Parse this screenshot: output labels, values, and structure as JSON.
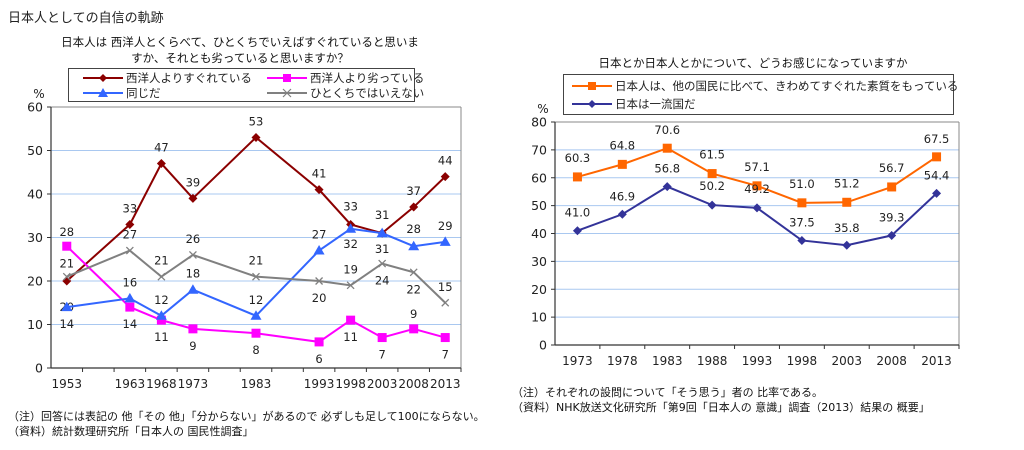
{
  "page": {
    "title": "日本人としての自信の軌跡"
  },
  "chart_data": [
    {
      "type": "line",
      "title": "日本人は 西洋人とくらべて、ひとくちでいえばすぐれていると思いますか、それとも劣っていると思いますか？",
      "title_lines": [
        "日本人は 西洋人とくらべて、ひとくちでいえばすぐれていると思いま",
        "すか、それとも劣っていると思いますか？"
      ],
      "ylabel": "%",
      "xlabel": "",
      "ylim": [
        0,
        60
      ],
      "yticks": [
        0,
        10,
        20,
        30,
        40,
        50,
        60
      ],
      "grid": true,
      "legend_position": "top",
      "x_slots": [
        1953,
        1958,
        1963,
        1968,
        1973,
        1978,
        1983,
        1988,
        1993,
        1998,
        2003,
        2008,
        2013
      ],
      "x": [
        1953,
        1963,
        1968,
        1973,
        1983,
        1993,
        1998,
        2003,
        2008,
        2013
      ],
      "xtick_labels": [
        "1953",
        "1963",
        "1968",
        "1973",
        "1983",
        "1993",
        "1998",
        "2003",
        "2008",
        "2013"
      ],
      "series": [
        {
          "name": "西洋人よりすぐれている",
          "color": "#8b0000",
          "marker": "diamond",
          "values": [
            20,
            33,
            47,
            39,
            53,
            41,
            33,
            31,
            37,
            44
          ],
          "label_pos": [
            "below-above",
            "above",
            "above",
            "above",
            "above",
            "above",
            "above",
            "above",
            "above",
            "above"
          ]
        },
        {
          "name": "西洋人より劣っている",
          "color": "#ff00ff",
          "marker": "square",
          "values": [
            28,
            14,
            11,
            9,
            8,
            6,
            11,
            7,
            9,
            7
          ]
        },
        {
          "name": "同じだ",
          "color": "#3366ff",
          "marker": "triangle",
          "values": [
            14,
            16,
            12,
            18,
            12,
            27,
            32,
            31,
            28,
            29
          ]
        },
        {
          "name": "ひとくちではいえない",
          "color": "#808080",
          "marker": "x",
          "values": [
            21,
            27,
            21,
            26,
            21,
            20,
            19,
            24,
            22,
            15
          ]
        }
      ]
    },
    {
      "type": "line",
      "title": "日本とか日本人とかについて、どうお感じになっていますか",
      "ylabel": "%",
      "xlabel": "",
      "ylim": [
        0,
        80
      ],
      "yticks": [
        0,
        10,
        20,
        30,
        40,
        50,
        60,
        70,
        80
      ],
      "grid": true,
      "legend_position": "top",
      "x": [
        1973,
        1978,
        1983,
        1988,
        1993,
        1998,
        2003,
        2008,
        2013
      ],
      "xtick_labels": [
        "1973",
        "1978",
        "1983",
        "1988",
        "1993",
        "1998",
        "2003",
        "2008",
        "2013"
      ],
      "series": [
        {
          "name": "日本人は、他の国民に比べて、きわめてすぐれた素質をもっている",
          "color": "#ff6600",
          "marker": "square",
          "values": [
            60.3,
            64.8,
            70.6,
            61.5,
            57.1,
            51.0,
            51.2,
            56.7,
            67.5
          ],
          "labels": [
            "60.3",
            "64.8",
            "70.6",
            "61.5",
            "57.1",
            "51.0",
            "51.2",
            "56.7",
            "67.5"
          ]
        },
        {
          "name": "日本は一流国だ",
          "color": "#333399",
          "marker": "diamond",
          "values": [
            41.0,
            46.9,
            56.8,
            50.2,
            49.2,
            37.5,
            35.8,
            39.3,
            54.4
          ],
          "labels": [
            "41.0",
            "46.9",
            "56.8",
            "50.2",
            "49.2",
            "37.5",
            "35.8",
            "39.3",
            "54.4"
          ]
        }
      ]
    }
  ],
  "notes": {
    "left": [
      "（注）回答には表記の 他「その 他」「分からない」があるので 必ずしも足して100にならない。",
      "（資料）統計数理研究所「日本人の 国民性調査」"
    ],
    "right": [
      "（注）それぞれの設問について「そう思う」者の 比率である。",
      "（資料）NHK放送文化研究所「第9回「日本人の 意識」調査（2013）結果の 概要」"
    ]
  }
}
